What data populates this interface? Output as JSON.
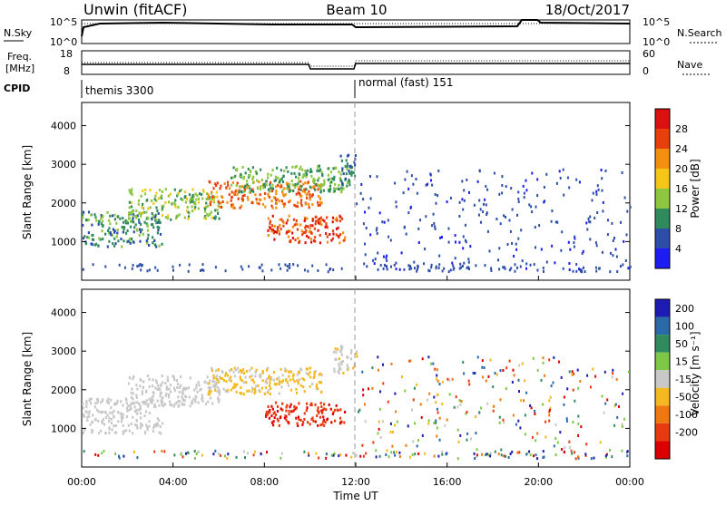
{
  "header": {
    "title": "Unwin (fitACF)",
    "beam": "Beam 10",
    "date": "18/Oct/2017"
  },
  "panels": {
    "nsky": {
      "left_label": "N.Sky",
      "right_label": "N.Search",
      "left_ticks": [
        "10^5",
        "10^0"
      ],
      "right_ticks": [
        "10^5",
        "10^0"
      ]
    },
    "freq": {
      "left_label_1": "Freq.",
      "left_label_2": "[MHz]",
      "right_label": "Nave",
      "left_ticks": [
        "18",
        "8"
      ],
      "right_ticks": [
        "60",
        "0"
      ]
    },
    "cpid": {
      "label": "CPID",
      "segments": [
        {
          "name": "themis 3300",
          "start_hour": 0
        },
        {
          "name": "normal (fast) 151",
          "start_hour": 12
        }
      ]
    }
  },
  "axes": {
    "ylabel": "Slant Range [km]",
    "y_ticks": [
      "1000",
      "2000",
      "3000",
      "4000"
    ],
    "x_ticks": [
      "00:00",
      "04:00",
      "08:00",
      "12:00",
      "16:00",
      "20:00",
      "00:00"
    ],
    "xlabel": "Time UT"
  },
  "colorbars": {
    "power": {
      "label": "Power [dB]",
      "ticks": [
        "4",
        "8",
        "12",
        "16",
        "20",
        "24",
        "28"
      ],
      "colors": [
        "#1c1cf5",
        "#2c4ea8",
        "#2f8b5d",
        "#8dc63f",
        "#f5c518",
        "#f39010",
        "#e8400c",
        "#dd1010"
      ]
    },
    "velocity": {
      "label": "Velocity [m s⁻¹]",
      "ticks": [
        "200",
        "100",
        "50",
        "15",
        "-15",
        "-50",
        "-100",
        "-200"
      ],
      "colors": [
        "#1c1cb4",
        "#2a6aa8",
        "#2f8b5d",
        "#7ec847",
        "#c8c8c8",
        "#f5b820",
        "#f07810",
        "#e83a10",
        "#dd0000"
      ]
    }
  },
  "chart_data": [
    {
      "type": "heatmap",
      "title": "Power",
      "xlabel": "Time UT",
      "ylabel": "Slant Range [km]",
      "xlim": [
        0,
        24
      ],
      "ylim": [
        0,
        4600
      ],
      "colorbar": "Power [dB]",
      "regions": [
        {
          "t0": 0.0,
          "t1": 3.5,
          "r0": 900,
          "r1": 1800,
          "level": 10
        },
        {
          "t0": 2.0,
          "t1": 6.0,
          "r0": 1600,
          "r1": 2400,
          "level": 14
        },
        {
          "t0": 5.5,
          "t1": 10.5,
          "r0": 1900,
          "r1": 2600,
          "level": 24
        },
        {
          "t0": 6.5,
          "t1": 11.8,
          "r0": 2300,
          "r1": 3000,
          "level": 12
        },
        {
          "t0": 8.0,
          "t1": 11.5,
          "r0": 1000,
          "r1": 1700,
          "level": 26
        },
        {
          "t0": 11.3,
          "t1": 12.0,
          "r0": 2500,
          "r1": 3300,
          "level": 8
        }
      ]
    },
    {
      "type": "heatmap",
      "title": "Velocity",
      "xlabel": "Time UT",
      "ylabel": "Slant Range [km]",
      "xlim": [
        0,
        24
      ],
      "ylim": [
        0,
        4600
      ],
      "colorbar": "Velocity [m s⁻¹]",
      "regions": [
        {
          "t0": 0.0,
          "t1": 3.5,
          "r0": 900,
          "r1": 1800,
          "level": 0
        },
        {
          "t0": 2.0,
          "t1": 6.0,
          "r0": 1600,
          "r1": 2400,
          "level": 0
        },
        {
          "t0": 5.5,
          "t1": 10.5,
          "r0": 1900,
          "r1": 2600,
          "level": -20
        },
        {
          "t0": 8.0,
          "t1": 11.5,
          "r0": 1100,
          "r1": 1700,
          "level": -190
        },
        {
          "t0": 11.0,
          "t1": 12.0,
          "r0": 2400,
          "r1": 3200,
          "level": -10
        }
      ]
    }
  ]
}
